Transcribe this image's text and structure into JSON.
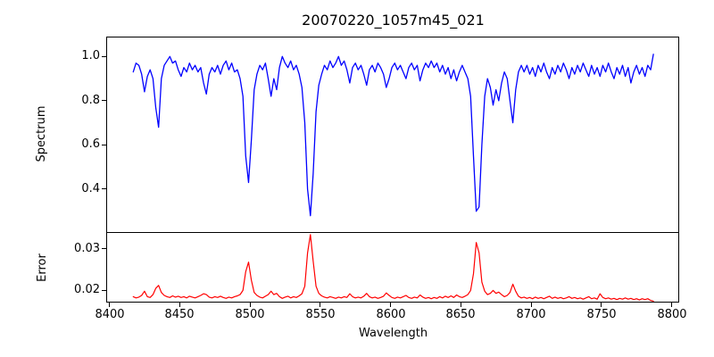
{
  "title": "20070220_1057m45_021",
  "colors": {
    "spectrum_line": "#0000ff",
    "error_line": "#ff0000",
    "axis": "#000000",
    "background": "#ffffff"
  },
  "chart_data": {
    "type": "line",
    "title": "20070220_1057m45_021",
    "xlabel": "Wavelength",
    "xlim": [
      8398.4,
      8804.7
    ],
    "grid": false,
    "legend": "none",
    "x_ticks": [
      {
        "v": 8400,
        "label": "8400"
      },
      {
        "v": 8450,
        "label": "8450"
      },
      {
        "v": 8500,
        "label": "8500"
      },
      {
        "v": 8550,
        "label": "8550"
      },
      {
        "v": 8600,
        "label": "8600"
      },
      {
        "v": 8650,
        "label": "8650"
      },
      {
        "v": 8700,
        "label": "8700"
      },
      {
        "v": 8750,
        "label": "8750"
      },
      {
        "v": 8800,
        "label": "8800"
      }
    ],
    "x": [
      8417,
      8419,
      8421,
      8423,
      8425,
      8427,
      8429,
      8431,
      8433,
      8435,
      8437,
      8439,
      8441,
      8443,
      8445,
      8447,
      8449,
      8451,
      8453,
      8455,
      8457,
      8459,
      8461,
      8463,
      8465,
      8467,
      8469,
      8471,
      8473,
      8475,
      8477,
      8479,
      8481,
      8483,
      8485,
      8487,
      8489,
      8491,
      8493,
      8495,
      8497,
      8499,
      8501,
      8503,
      8505,
      8507,
      8509,
      8511,
      8513,
      8515,
      8517,
      8519,
      8521,
      8523,
      8525,
      8527,
      8529,
      8531,
      8533,
      8535,
      8537,
      8539,
      8541,
      8543,
      8545,
      8547,
      8549,
      8551,
      8553,
      8555,
      8557,
      8559,
      8561,
      8563,
      8565,
      8567,
      8569,
      8571,
      8573,
      8575,
      8577,
      8579,
      8581,
      8583,
      8585,
      8587,
      8589,
      8591,
      8593,
      8595,
      8597,
      8599,
      8601,
      8603,
      8605,
      8607,
      8609,
      8611,
      8613,
      8615,
      8617,
      8619,
      8621,
      8623,
      8625,
      8627,
      8629,
      8631,
      8633,
      8635,
      8637,
      8639,
      8641,
      8643,
      8645,
      8647,
      8649,
      8651,
      8653,
      8655,
      8657,
      8659,
      8661,
      8663,
      8665,
      8667,
      8669,
      8671,
      8673,
      8675,
      8677,
      8679,
      8681,
      8683,
      8685,
      8687,
      8689,
      8691,
      8693,
      8695,
      8697,
      8699,
      8701,
      8703,
      8705,
      8707,
      8709,
      8711,
      8713,
      8715,
      8717,
      8719,
      8721,
      8723,
      8725,
      8727,
      8729,
      8731,
      8733,
      8735,
      8737,
      8739,
      8741,
      8743,
      8745,
      8747,
      8749,
      8751,
      8753,
      8755,
      8757,
      8759,
      8761,
      8763,
      8765,
      8767,
      8769,
      8771,
      8773,
      8775,
      8777,
      8779,
      8781,
      8783,
      8785,
      8787
    ],
    "panels": [
      {
        "name": "spectrum",
        "ylabel": "Spectrum",
        "ylim": [
          0.206,
          1.086
        ],
        "color": "#0000ff",
        "y_ticks": [
          {
            "v": 1.0,
            "label": "1.0"
          },
          {
            "v": 0.8,
            "label": "0.8"
          },
          {
            "v": 0.6,
            "label": "0.6"
          },
          {
            "v": 0.4,
            "label": "0.4"
          }
        ],
        "values": [
          0.93,
          0.97,
          0.96,
          0.92,
          0.84,
          0.91,
          0.94,
          0.9,
          0.77,
          0.68,
          0.9,
          0.96,
          0.98,
          1.0,
          0.97,
          0.98,
          0.94,
          0.91,
          0.95,
          0.93,
          0.97,
          0.94,
          0.96,
          0.93,
          0.95,
          0.88,
          0.83,
          0.92,
          0.95,
          0.93,
          0.96,
          0.92,
          0.96,
          0.98,
          0.94,
          0.97,
          0.93,
          0.94,
          0.9,
          0.82,
          0.55,
          0.43,
          0.62,
          0.85,
          0.92,
          0.96,
          0.94,
          0.97,
          0.9,
          0.82,
          0.9,
          0.85,
          0.95,
          1.0,
          0.97,
          0.95,
          0.98,
          0.94,
          0.96,
          0.92,
          0.86,
          0.7,
          0.4,
          0.28,
          0.47,
          0.75,
          0.87,
          0.92,
          0.96,
          0.94,
          0.98,
          0.95,
          0.97,
          1.0,
          0.96,
          0.98,
          0.94,
          0.88,
          0.95,
          0.97,
          0.94,
          0.96,
          0.92,
          0.87,
          0.94,
          0.96,
          0.93,
          0.97,
          0.95,
          0.92,
          0.86,
          0.9,
          0.95,
          0.97,
          0.94,
          0.96,
          0.93,
          0.9,
          0.95,
          0.97,
          0.94,
          0.96,
          0.89,
          0.94,
          0.97,
          0.95,
          0.98,
          0.95,
          0.97,
          0.93,
          0.96,
          0.92,
          0.95,
          0.9,
          0.94,
          0.89,
          0.93,
          0.96,
          0.93,
          0.9,
          0.82,
          0.55,
          0.3,
          0.32,
          0.6,
          0.82,
          0.9,
          0.86,
          0.78,
          0.85,
          0.8,
          0.88,
          0.93,
          0.9,
          0.8,
          0.7,
          0.85,
          0.93,
          0.96,
          0.93,
          0.96,
          0.92,
          0.95,
          0.91,
          0.96,
          0.93,
          0.97,
          0.93,
          0.9,
          0.95,
          0.92,
          0.96,
          0.93,
          0.97,
          0.94,
          0.9,
          0.95,
          0.92,
          0.96,
          0.93,
          0.97,
          0.94,
          0.91,
          0.96,
          0.92,
          0.95,
          0.91,
          0.96,
          0.93,
          0.97,
          0.93,
          0.9,
          0.95,
          0.92,
          0.96,
          0.91,
          0.95,
          0.88,
          0.93,
          0.96,
          0.92,
          0.95,
          0.91,
          0.96,
          0.94,
          1.01
        ]
      },
      {
        "name": "error",
        "ylabel": "Error",
        "ylim": [
          0.0173,
          0.0338
        ],
        "color": "#ff0000",
        "y_ticks": [
          {
            "v": 0.03,
            "label": "0.03"
          },
          {
            "v": 0.02,
            "label": "0.02"
          }
        ],
        "values": [
          0.0185,
          0.0182,
          0.0184,
          0.0188,
          0.0198,
          0.0185,
          0.0183,
          0.019,
          0.0205,
          0.0212,
          0.0195,
          0.0188,
          0.0185,
          0.0183,
          0.0187,
          0.0184,
          0.0186,
          0.0183,
          0.0185,
          0.0182,
          0.0186,
          0.0184,
          0.0182,
          0.0185,
          0.0188,
          0.0192,
          0.019,
          0.0184,
          0.0182,
          0.0185,
          0.0183,
          0.0186,
          0.0183,
          0.0181,
          0.0184,
          0.0182,
          0.0185,
          0.0187,
          0.019,
          0.02,
          0.0245,
          0.0268,
          0.0225,
          0.0195,
          0.0188,
          0.0184,
          0.0182,
          0.0186,
          0.019,
          0.0198,
          0.019,
          0.0193,
          0.0185,
          0.0181,
          0.0184,
          0.0186,
          0.0182,
          0.0185,
          0.0183,
          0.0187,
          0.0192,
          0.021,
          0.029,
          0.0334,
          0.027,
          0.021,
          0.0193,
          0.0187,
          0.0184,
          0.0182,
          0.0185,
          0.0183,
          0.0181,
          0.0184,
          0.0182,
          0.0185,
          0.0183,
          0.0192,
          0.0185,
          0.0182,
          0.0184,
          0.0182,
          0.0186,
          0.0193,
          0.0185,
          0.0182,
          0.0184,
          0.0181,
          0.0183,
          0.0186,
          0.0194,
          0.0188,
          0.0183,
          0.0181,
          0.0184,
          0.0182,
          0.0185,
          0.0188,
          0.0183,
          0.0181,
          0.0184,
          0.0182,
          0.0189,
          0.0184,
          0.0181,
          0.0183,
          0.018,
          0.0183,
          0.0181,
          0.0185,
          0.0182,
          0.0186,
          0.0183,
          0.0187,
          0.0183,
          0.0189,
          0.0185,
          0.0183,
          0.0186,
          0.019,
          0.02,
          0.024,
          0.0315,
          0.029,
          0.022,
          0.0198,
          0.019,
          0.0193,
          0.02,
          0.0193,
          0.0196,
          0.019,
          0.0185,
          0.0188,
          0.0195,
          0.0215,
          0.0198,
          0.0186,
          0.0182,
          0.0184,
          0.0181,
          0.0183,
          0.018,
          0.0184,
          0.0181,
          0.0183,
          0.018,
          0.0183,
          0.0186,
          0.0181,
          0.0184,
          0.0181,
          0.0183,
          0.018,
          0.0182,
          0.0185,
          0.0181,
          0.0183,
          0.018,
          0.0182,
          0.0179,
          0.0182,
          0.0185,
          0.018,
          0.0182,
          0.0179,
          0.0192,
          0.0183,
          0.018,
          0.0182,
          0.0179,
          0.0181,
          0.0178,
          0.0181,
          0.0179,
          0.0182,
          0.0179,
          0.0181,
          0.0178,
          0.018,
          0.0177,
          0.018,
          0.0178,
          0.018,
          0.0176,
          0.0174
        ]
      }
    ]
  }
}
